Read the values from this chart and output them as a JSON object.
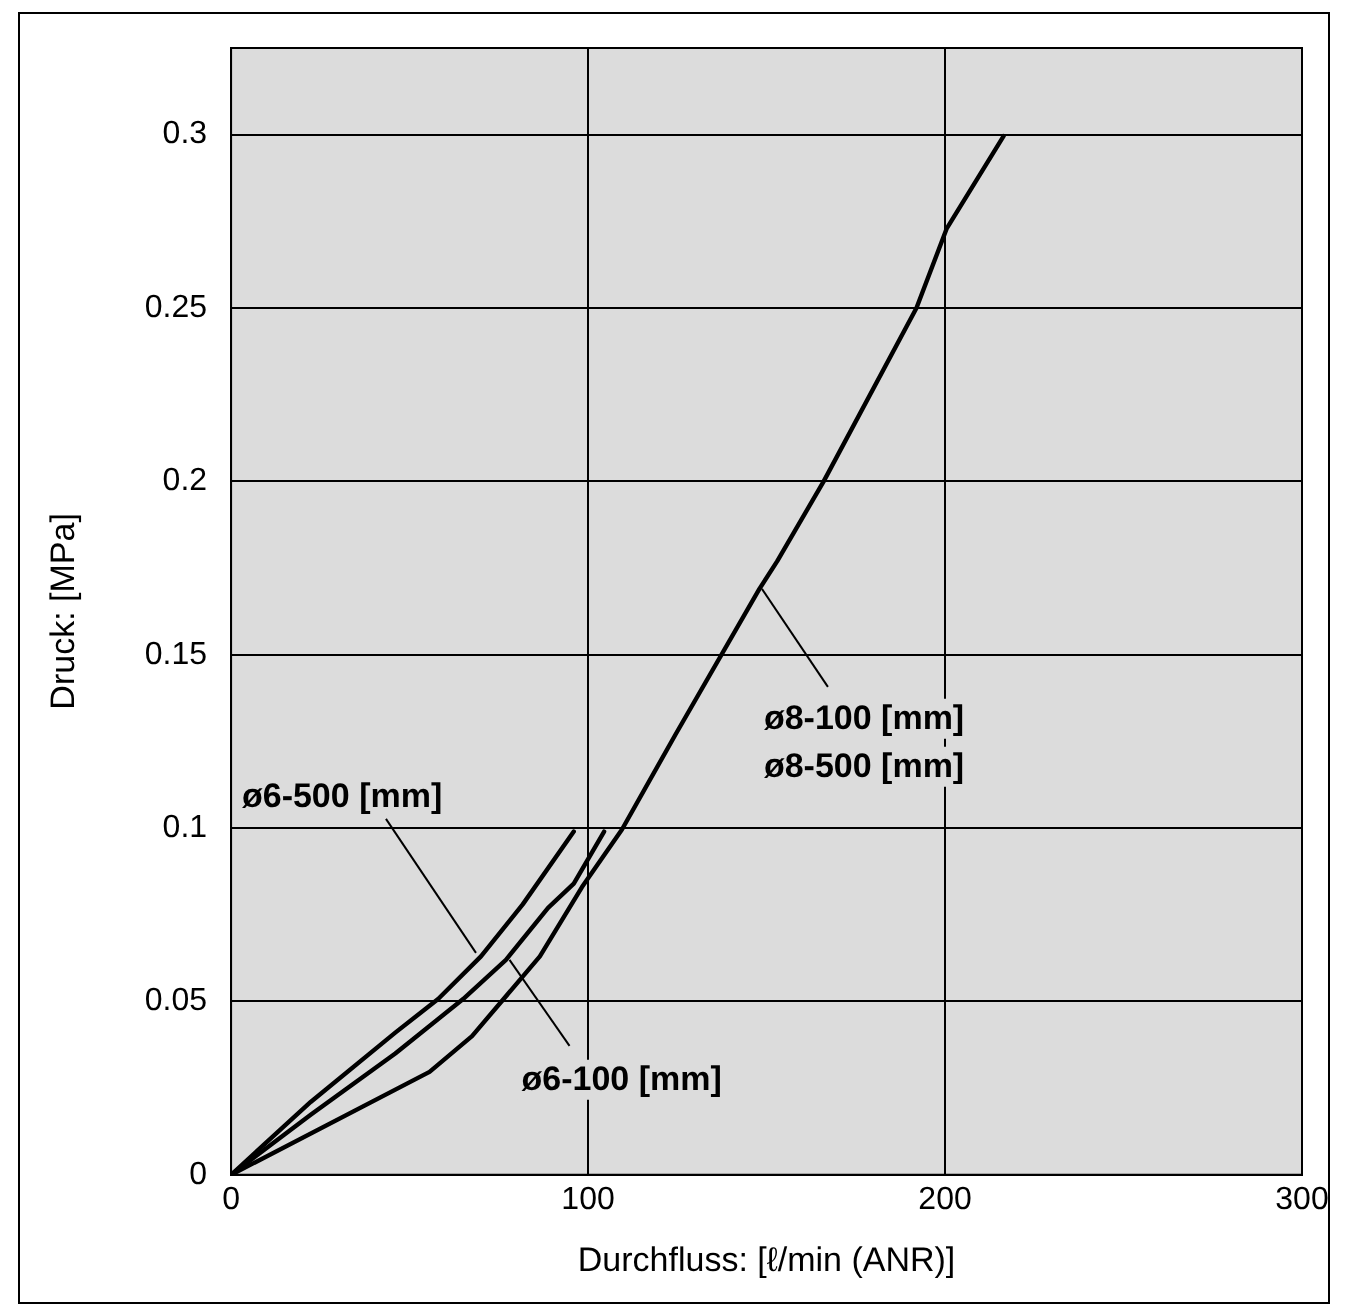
{
  "chart_data": {
    "type": "line",
    "xlabel": "Durchfluss: [ℓ/min (ANR)]",
    "ylabel": "Druck: [MPa]",
    "xlim": [
      0,
      300
    ],
    "xticks": [
      0,
      100,
      200,
      300
    ],
    "ylim": [
      0,
      0.325
    ],
    "yticks": [
      0,
      0.05,
      0.1,
      0.15,
      0.2,
      0.25,
      0.3
    ],
    "grid": true,
    "legend": false,
    "marker": "none",
    "line_style": "solid",
    "series": [
      {
        "color": "#000000",
        "x": [
          0,
          22.3,
          46,
          58,
          70,
          81.7,
          96
        ],
        "values": [
          0,
          0.021,
          0.041,
          0.0507,
          0.063,
          0.078,
          0.099
        ]
      },
      {
        "color": "#000000",
        "x": [
          0,
          22.3,
          46,
          65,
          77,
          88.8,
          96,
          104.5
        ],
        "values": [
          0,
          0.0173,
          0.035,
          0.0507,
          0.062,
          0.077,
          0.084,
          0.099
        ]
      },
      {
        "color": "#000000",
        "x": [
          0,
          55.6,
          67.5,
          86.5,
          98.3,
          109.5,
          124.5,
          148,
          153,
          166,
          192,
          200.5,
          216.4
        ],
        "values": [
          0,
          0.0297,
          0.04,
          0.063,
          0.083,
          0.0996,
          0.127,
          0.169,
          0.177,
          0.2,
          0.25,
          0.273,
          0.2996
        ]
      }
    ],
    "annotations": [
      {
        "text": "ø6-500 [mm]",
        "x": 68.6,
        "y": 0.064
      },
      {
        "text": "ø6-100 [mm]",
        "x": 78,
        "y": 0.062
      },
      {
        "text": "ø8-100 [mm]\nø8-500 [mm]",
        "x": 148.7,
        "y": 0.169
      }
    ]
  }
}
